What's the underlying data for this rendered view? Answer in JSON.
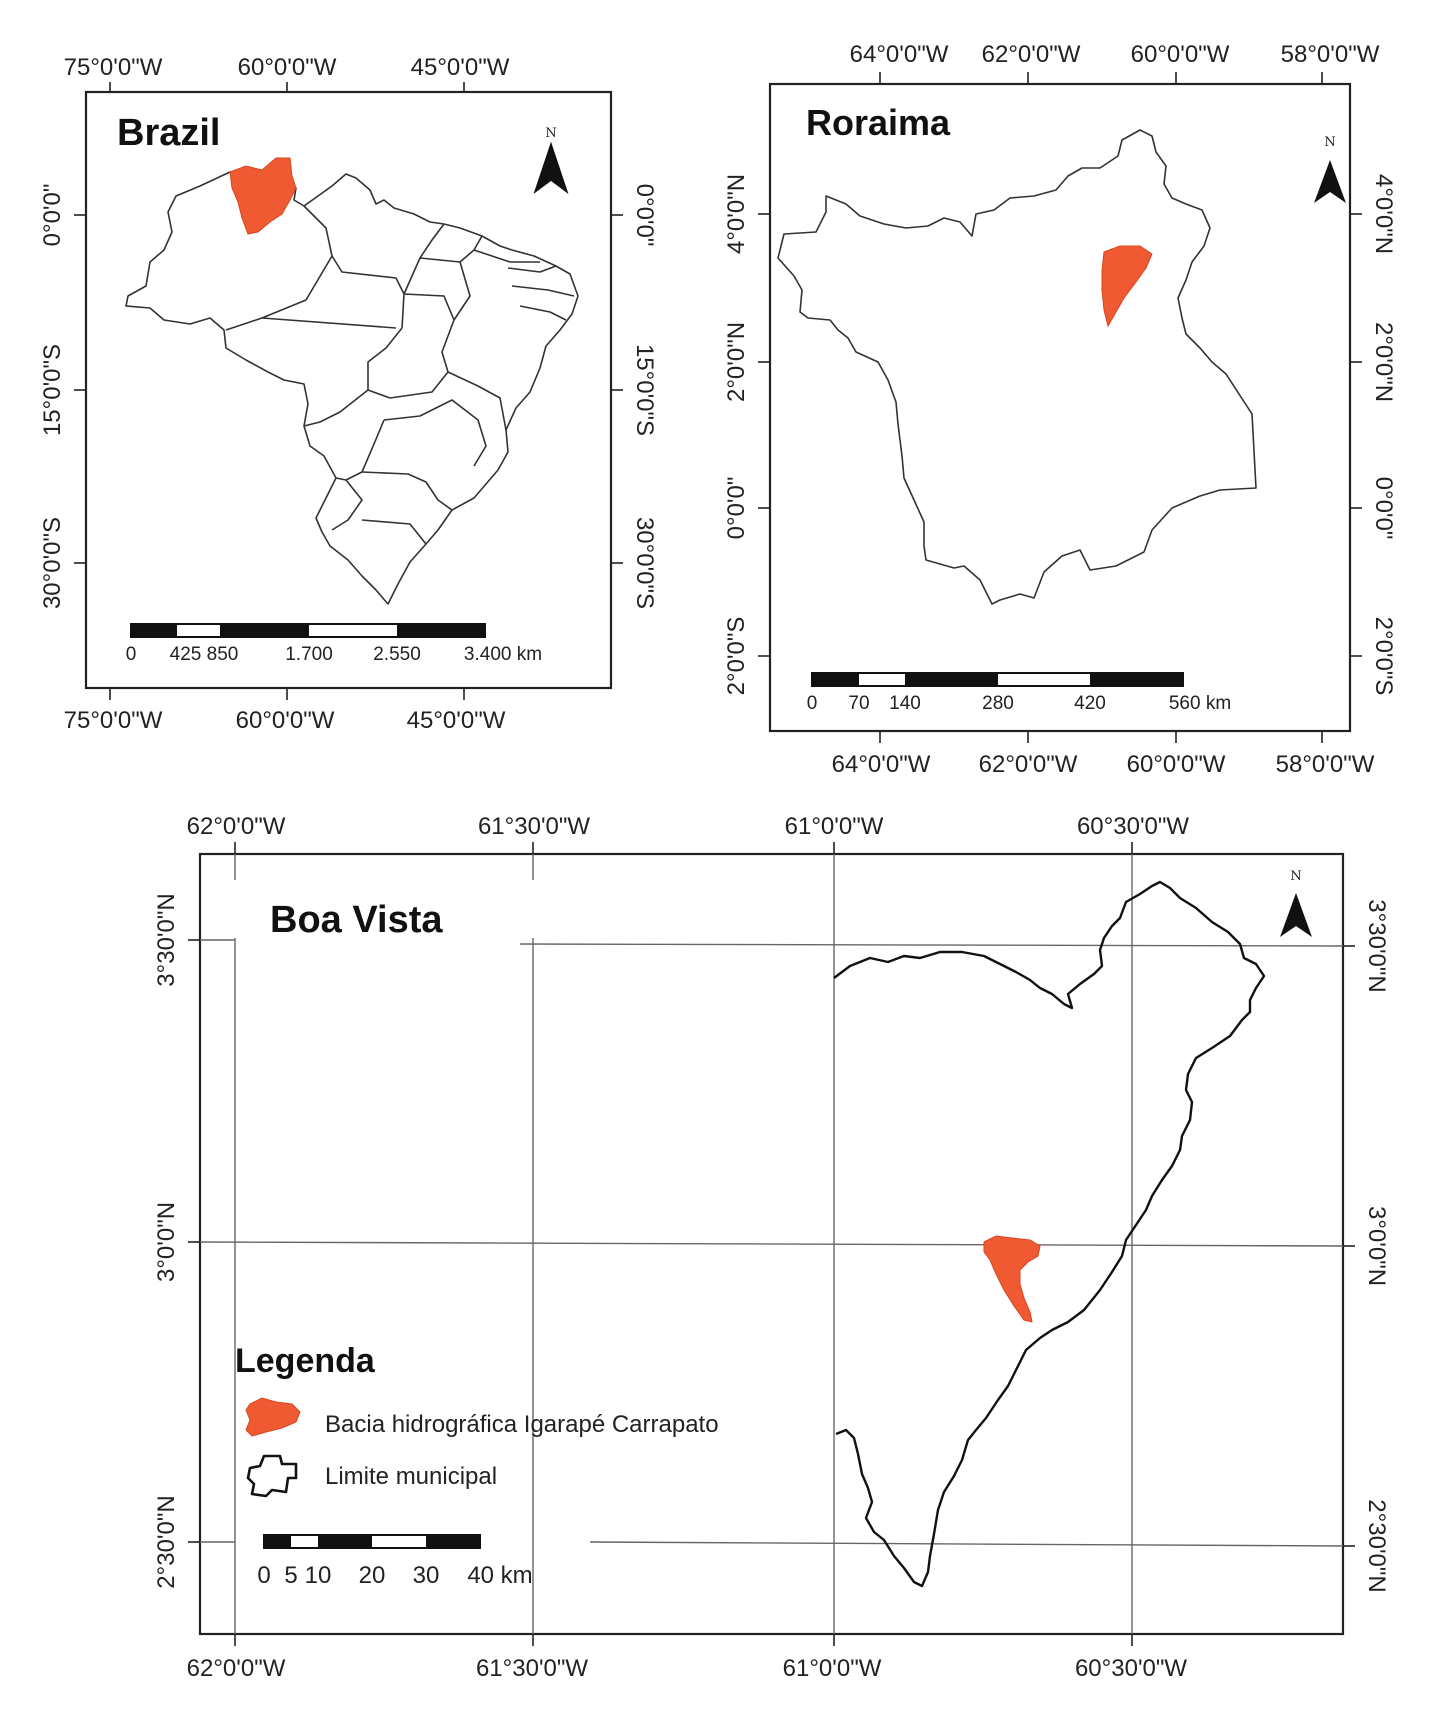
{
  "maps": {
    "brazil": {
      "title": "Brazil",
      "north": "N",
      "top_labels": [
        "75°0'0\"W",
        "60°0'0\"W",
        "45°0'0\"W"
      ],
      "bottom_labels": [
        "75°0'0\"W",
        "60°0'0\"W",
        "45°0'0\"W"
      ],
      "left_labels": [
        "0°0'0\"",
        "15°0'0\"S",
        "30°0'0\"S"
      ],
      "right_labels": [
        "0°0'0\"",
        "15°0'0\"S",
        "30°0'0\"S"
      ],
      "scale_labels": [
        "0",
        "425 850",
        "1.700",
        "2.550",
        "3.400 km"
      ]
    },
    "roraima": {
      "title": "Roraima",
      "north": "N",
      "top_labels": [
        "64°0'0\"W",
        "62°0'0\"W",
        "60°0'0\"W",
        "58°0'0\"W"
      ],
      "bottom_labels": [
        "64°0'0\"W",
        "62°0'0\"W",
        "60°0'0\"W",
        "58°0'0\"W"
      ],
      "left_labels": [
        "4°0'0\"N",
        "2°0'0\"N",
        "0°0'0\"",
        "2°0'0\"S"
      ],
      "right_labels": [
        "4°0'0\"N",
        "2°0'0\"N",
        "0°0'0\"",
        "2°0'0\"S"
      ],
      "scale_labels": [
        "0",
        "70",
        "140",
        "280",
        "420",
        "560 km"
      ]
    },
    "boavista": {
      "title": "Boa Vista",
      "north": "N",
      "top_labels": [
        "62°0'0\"W",
        "61°30'0\"W",
        "61°0'0\"W",
        "60°30'0\"W"
      ],
      "bottom_labels": [
        "62°0'0\"W",
        "61°30'0\"W",
        "61°0'0\"W",
        "60°30'0\"W"
      ],
      "left_labels": [
        "3°30'0\"N",
        "3°0'0\"N",
        "2°30'0\"N"
      ],
      "right_labels": [
        "3°30'0\"N",
        "3°0'0\"N",
        "2°30'0\"N"
      ],
      "scale_labels": [
        "0",
        "5",
        "10",
        "20",
        "30",
        "40 km"
      ],
      "legend": {
        "title": "Legenda",
        "items": [
          "Bacia hidrográfica Igarapé Carrapato",
          "Limite municipal"
        ]
      }
    }
  },
  "colors": {
    "basin": "#ef5a32",
    "frame": "#222222",
    "grid": "#666666"
  }
}
